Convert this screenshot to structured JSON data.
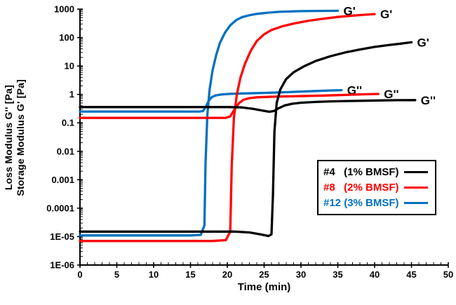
{
  "chart_data": {
    "type": "line",
    "title": "",
    "xlabel": "Time (min)",
    "ylabel_lines": [
      "Loss Modulus  G'' [Pa]",
      "Storage Modulus  G' [Pa]"
    ],
    "xlim": [
      0,
      50
    ],
    "x_minor_step": 1,
    "x_ticks": [
      {
        "label": "0",
        "value": 0
      },
      {
        "label": "5",
        "value": 5
      },
      {
        "label": "10",
        "value": 10
      },
      {
        "label": "15",
        "value": 15
      },
      {
        "label": "20",
        "value": 20
      },
      {
        "label": "25",
        "value": 25
      },
      {
        "label": "30",
        "value": 30
      },
      {
        "label": "35",
        "value": 35
      },
      {
        "label": "40",
        "value": 40
      },
      {
        "label": "45",
        "value": 45
      },
      {
        "label": "50",
        "value": 50
      }
    ],
    "y_scale": "log",
    "y_log_range": [
      -6,
      3
    ],
    "y_ticks": [
      {
        "label": "1000",
        "exp": 3
      },
      {
        "label": "100",
        "exp": 2
      },
      {
        "label": "10",
        "exp": 1
      },
      {
        "label": "1",
        "exp": 0
      },
      {
        "label": "0.1",
        "exp": -1
      },
      {
        "label": "0.01",
        "exp": -2
      },
      {
        "label": "0.001",
        "exp": -3
      },
      {
        "label": "0.0001",
        "exp": -4
      },
      {
        "label": "1E-05",
        "exp": -5
      },
      {
        "label": "1E-06",
        "exp": -6
      }
    ],
    "grid": false,
    "axis_color": "#000000",
    "colors": {
      "sample4": "#000000",
      "sample8": "#FF0000",
      "sample12": "#0070C0"
    },
    "series": [
      {
        "id": "s12_gp",
        "name": "#12 (3% BMSF) G'",
        "color": "#0070C0",
        "end_label": "G'",
        "points": [
          [
            0,
            1.1e-05
          ],
          [
            3,
            1.1e-05
          ],
          [
            6,
            1.1e-05
          ],
          [
            9,
            1.1e-05
          ],
          [
            12,
            1.1e-05
          ],
          [
            15,
            1.1e-05
          ],
          [
            16.4,
            1.15e-05
          ],
          [
            16.9,
            2.5e-05
          ],
          [
            17.05,
            0.004
          ],
          [
            17.3,
            0.2
          ],
          [
            17.6,
            1.5
          ],
          [
            18,
            7
          ],
          [
            18.5,
            25
          ],
          [
            19,
            65
          ],
          [
            19.7,
            150
          ],
          [
            20.4,
            270
          ],
          [
            21.2,
            410
          ],
          [
            22,
            520
          ],
          [
            23,
            610
          ],
          [
            24,
            680
          ],
          [
            25.5,
            750
          ],
          [
            27,
            800
          ],
          [
            28.5,
            830
          ],
          [
            30,
            850
          ],
          [
            32,
            862
          ],
          [
            33.5,
            868
          ],
          [
            35,
            872
          ]
        ]
      },
      {
        "id": "s12_gpp",
        "name": "#12 (3% BMSF) G''",
        "color": "#0070C0",
        "end_label": "G''",
        "points": [
          [
            0,
            0.25
          ],
          [
            3,
            0.25
          ],
          [
            6,
            0.25
          ],
          [
            9,
            0.25
          ],
          [
            12,
            0.25
          ],
          [
            15,
            0.25
          ],
          [
            16.2,
            0.25
          ],
          [
            16.7,
            0.26
          ],
          [
            17.1,
            0.38
          ],
          [
            17.5,
            0.62
          ],
          [
            17.9,
            0.8
          ],
          [
            18.4,
            0.92
          ],
          [
            19.2,
            1.0
          ],
          [
            20.5,
            1.05
          ],
          [
            22,
            1.08
          ],
          [
            24,
            1.11
          ],
          [
            26,
            1.15
          ],
          [
            28,
            1.2
          ],
          [
            30,
            1.26
          ],
          [
            32,
            1.32
          ],
          [
            33.8,
            1.37
          ],
          [
            35.5,
            1.41
          ]
        ]
      },
      {
        "id": "s8_gp",
        "name": "#8 (2% BMSF) G'",
        "color": "#FF0000",
        "end_label": "G'",
        "points": [
          [
            0,
            7e-06
          ],
          [
            3,
            7e-06
          ],
          [
            6,
            7e-06
          ],
          [
            9,
            7e-06
          ],
          [
            12,
            7e-06
          ],
          [
            15,
            7e-06
          ],
          [
            18,
            7e-06
          ],
          [
            19.8,
            7.5e-06
          ],
          [
            20.4,
            1.5e-05
          ],
          [
            20.6,
            0.003
          ],
          [
            20.9,
            0.15
          ],
          [
            21.3,
            1
          ],
          [
            21.8,
            4
          ],
          [
            22.4,
            12
          ],
          [
            23.2,
            35
          ],
          [
            24,
            75
          ],
          [
            25,
            130
          ],
          [
            26,
            185
          ],
          [
            27.5,
            250
          ],
          [
            29,
            310
          ],
          [
            31,
            390
          ],
          [
            33,
            460
          ],
          [
            35,
            530
          ],
          [
            37,
            590
          ],
          [
            38.5,
            630
          ],
          [
            40,
            670
          ]
        ]
      },
      {
        "id": "s8_gpp",
        "name": "#8 (2% BMSF) G''",
        "color": "#FF0000",
        "end_label": "G''",
        "points": [
          [
            0,
            0.15
          ],
          [
            3,
            0.15
          ],
          [
            6,
            0.15
          ],
          [
            9,
            0.15
          ],
          [
            12,
            0.15
          ],
          [
            15,
            0.15
          ],
          [
            18,
            0.15
          ],
          [
            19.8,
            0.15
          ],
          [
            20.4,
            0.17
          ],
          [
            21,
            0.3
          ],
          [
            21.6,
            0.5
          ],
          [
            22.2,
            0.65
          ],
          [
            23,
            0.74
          ],
          [
            24,
            0.79
          ],
          [
            25.5,
            0.82
          ],
          [
            27,
            0.84
          ],
          [
            29,
            0.86
          ],
          [
            31,
            0.885
          ],
          [
            33,
            0.91
          ],
          [
            35,
            0.945
          ],
          [
            37,
            0.98
          ],
          [
            38.5,
            1.01
          ],
          [
            40.5,
            1.04
          ]
        ]
      },
      {
        "id": "s4_gp",
        "name": "#4 (1% BMSF) G'",
        "color": "#000000",
        "end_label": "G'",
        "points": [
          [
            0,
            1.5e-05
          ],
          [
            3,
            1.5e-05
          ],
          [
            6,
            1.5e-05
          ],
          [
            9,
            1.5e-05
          ],
          [
            12,
            1.5e-05
          ],
          [
            15,
            1.5e-05
          ],
          [
            18,
            1.5e-05
          ],
          [
            21,
            1.5e-05
          ],
          [
            23,
            1.4e-05
          ],
          [
            24.5,
            1.2e-05
          ],
          [
            25.6,
            1.05e-05
          ],
          [
            26.0,
            1.2e-05
          ],
          [
            26.2,
            0.0003
          ],
          [
            26.4,
            0.05
          ],
          [
            26.7,
            0.5
          ],
          [
            27.2,
            1.5
          ],
          [
            28,
            3.5
          ],
          [
            29,
            6
          ],
          [
            30.5,
            10
          ],
          [
            32,
            15
          ],
          [
            34,
            22
          ],
          [
            36,
            30
          ],
          [
            38,
            38
          ],
          [
            40,
            47
          ],
          [
            42,
            55
          ],
          [
            43.5,
            61
          ],
          [
            45,
            68
          ]
        ]
      },
      {
        "id": "s4_gpp",
        "name": "#4 (1% BMSF) G''",
        "color": "#000000",
        "end_label": "G''",
        "points": [
          [
            0,
            0.36
          ],
          [
            3,
            0.36
          ],
          [
            6,
            0.36
          ],
          [
            9,
            0.36
          ],
          [
            12,
            0.36
          ],
          [
            15,
            0.36
          ],
          [
            18,
            0.36
          ],
          [
            20,
            0.36
          ],
          [
            22,
            0.35
          ],
          [
            23.5,
            0.31
          ],
          [
            24.8,
            0.27
          ],
          [
            25.7,
            0.245
          ],
          [
            26.3,
            0.26
          ],
          [
            27,
            0.33
          ],
          [
            27.8,
            0.41
          ],
          [
            28.8,
            0.47
          ],
          [
            30,
            0.51
          ],
          [
            32,
            0.545
          ],
          [
            34,
            0.57
          ],
          [
            36,
            0.585
          ],
          [
            38.5,
            0.6
          ],
          [
            41,
            0.615
          ],
          [
            43,
            0.625
          ],
          [
            45.5,
            0.63
          ]
        ]
      }
    ],
    "legend": {
      "position": "inside-bottom-right",
      "entries": [
        {
          "sample": "#4",
          "label": "#4   (1% BMSF)",
          "color": "#000000"
        },
        {
          "sample": "#8",
          "label": "#8   (2% BMSF)",
          "color": "#FF0000"
        },
        {
          "sample": "#12",
          "label": "#12 (3% BMSF)",
          "color": "#0070C0"
        }
      ]
    }
  }
}
